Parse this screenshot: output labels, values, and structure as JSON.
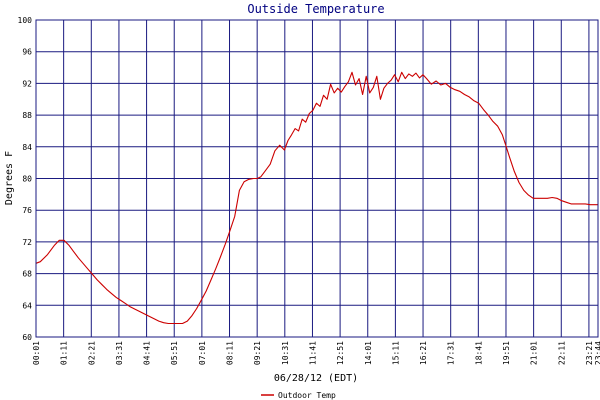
{
  "colors": {
    "grid": "#1a1a80",
    "series": "#cc0000",
    "title": "#000080",
    "background": "#ffffff"
  },
  "chart_data": {
    "type": "line",
    "title": "Outside Temperature",
    "xlabel": "06/28/12 (EDT)",
    "ylabel": "Degrees F",
    "ylim": [
      60,
      100
    ],
    "yticks": [
      60,
      64,
      68,
      72,
      76,
      80,
      84,
      88,
      92,
      96,
      100
    ],
    "xlim": [
      1.0167,
      24.7333
    ],
    "xticks": [
      {
        "label": "00:01",
        "t": 1.0167
      },
      {
        "label": "01:11",
        "t": 2.1833
      },
      {
        "label": "02:21",
        "t": 3.35
      },
      {
        "label": "03:31",
        "t": 4.5167
      },
      {
        "label": "04:41",
        "t": 5.6833
      },
      {
        "label": "05:51",
        "t": 6.85
      },
      {
        "label": "07:01",
        "t": 8.0167
      },
      {
        "label": "08:11",
        "t": 9.1833
      },
      {
        "label": "09:21",
        "t": 10.35
      },
      {
        "label": "10:31",
        "t": 11.5167
      },
      {
        "label": "11:41",
        "t": 12.6833
      },
      {
        "label": "12:51",
        "t": 13.85
      },
      {
        "label": "14:01",
        "t": 15.0167
      },
      {
        "label": "15:11",
        "t": 16.1833
      },
      {
        "label": "16:21",
        "t": 17.35
      },
      {
        "label": "17:31",
        "t": 18.5167
      },
      {
        "label": "18:41",
        "t": 19.6833
      },
      {
        "label": "19:51",
        "t": 20.85
      },
      {
        "label": "21:01",
        "t": 22.0167
      },
      {
        "label": "22:11",
        "t": 23.1833
      },
      {
        "label": "23:21",
        "t": 24.35
      },
      {
        "label": "23:44",
        "t": 24.7333
      }
    ],
    "grid": true,
    "legend": "bottom-left",
    "series": [
      {
        "name": "Outdoor Temp",
        "x": [
          1.0167,
          1.2,
          1.5,
          1.8,
          2.0,
          2.2,
          2.4,
          2.6,
          2.8,
          3.0,
          3.2,
          3.4,
          3.6,
          3.8,
          4.0,
          4.2,
          4.4,
          4.6,
          4.8,
          5.0,
          5.2,
          5.4,
          5.6,
          5.8,
          6.0,
          6.2,
          6.4,
          6.6,
          6.8,
          7.0,
          7.2,
          7.4,
          7.6,
          7.8,
          8.0,
          8.2,
          8.4,
          8.6,
          8.8,
          9.0,
          9.2,
          9.4,
          9.6,
          9.8,
          10.0,
          10.2,
          10.35,
          10.5,
          10.7,
          10.9,
          11.1,
          11.3,
          11.5,
          11.65,
          11.8,
          11.95,
          12.1,
          12.25,
          12.4,
          12.55,
          12.7,
          12.85,
          13.0,
          13.15,
          13.3,
          13.45,
          13.6,
          13.75,
          13.9,
          14.05,
          14.2,
          14.35,
          14.5,
          14.65,
          14.8,
          14.95,
          15.1,
          15.25,
          15.4,
          15.55,
          15.7,
          15.85,
          16.0,
          16.15,
          16.3,
          16.45,
          16.6,
          16.75,
          16.9,
          17.05,
          17.2,
          17.35,
          17.5,
          17.7,
          17.9,
          18.1,
          18.3,
          18.5,
          18.7,
          18.9,
          19.1,
          19.3,
          19.5,
          19.7,
          19.9,
          20.1,
          20.3,
          20.5,
          20.7,
          20.85,
          21.0,
          21.2,
          21.4,
          21.6,
          21.8,
          22.0,
          22.2,
          22.4,
          22.6,
          22.8,
          23.0,
          23.2,
          23.4,
          23.6,
          23.8,
          24.0,
          24.2,
          24.4,
          24.6,
          24.7333
        ],
        "y": [
          69.3,
          69.5,
          70.4,
          71.6,
          72.2,
          72.2,
          71.6,
          70.8,
          70.0,
          69.3,
          68.6,
          67.9,
          67.2,
          66.6,
          66.0,
          65.5,
          65.0,
          64.6,
          64.2,
          63.8,
          63.5,
          63.2,
          62.9,
          62.6,
          62.3,
          62.0,
          61.8,
          61.7,
          61.7,
          61.7,
          61.7,
          62.0,
          62.7,
          63.6,
          64.7,
          65.8,
          67.2,
          68.6,
          70.1,
          71.7,
          73.4,
          75.2,
          78.5,
          79.6,
          79.9,
          80.0,
          80.0,
          80.2,
          81.0,
          81.8,
          83.5,
          84.2,
          83.6,
          84.8,
          85.5,
          86.3,
          86.0,
          87.5,
          87.1,
          88.2,
          88.6,
          89.5,
          89.1,
          90.5,
          90.0,
          91.9,
          90.8,
          91.4,
          90.9,
          91.6,
          92.2,
          93.4,
          91.8,
          92.6,
          90.6,
          92.9,
          90.8,
          91.5,
          92.9,
          90.0,
          91.4,
          92.0,
          92.4,
          93.1,
          92.2,
          93.4,
          92.6,
          93.2,
          92.9,
          93.3,
          92.7,
          93.1,
          92.6,
          91.9,
          92.3,
          91.8,
          92.0,
          91.5,
          91.2,
          91.0,
          90.6,
          90.3,
          89.8,
          89.5,
          88.7,
          88.0,
          87.2,
          86.6,
          85.5,
          84.1,
          82.7,
          80.9,
          79.5,
          78.5,
          77.9,
          77.5,
          77.5,
          77.5,
          77.5,
          77.6,
          77.5,
          77.2,
          77.0,
          76.8,
          76.8,
          76.8,
          76.8,
          76.7,
          76.7,
          76.7
        ]
      }
    ]
  }
}
